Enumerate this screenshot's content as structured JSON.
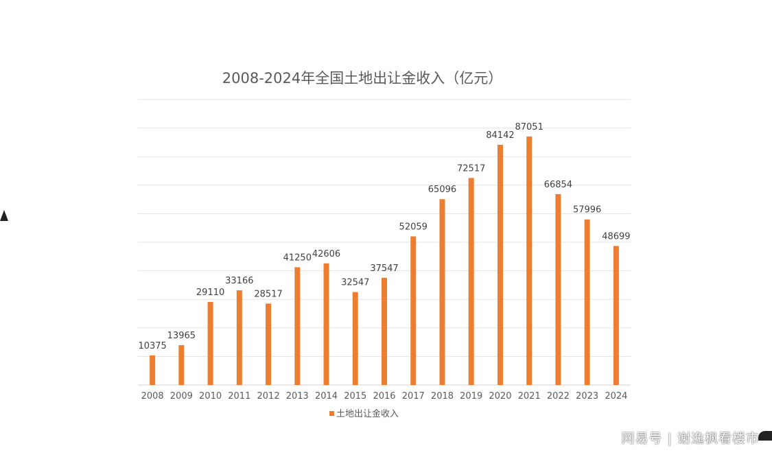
{
  "chart_data": {
    "type": "bar",
    "title": "2008-2024年全国土地出让金收入（亿元）",
    "categories": [
      "2008",
      "2009",
      "2010",
      "2011",
      "2012",
      "2013",
      "2014",
      "2015",
      "2016",
      "2017",
      "2018",
      "2019",
      "2020",
      "2021",
      "2022",
      "2023",
      "2024"
    ],
    "series": [
      {
        "name": "土地出让金收入",
        "values": [
          10375,
          13965,
          29110,
          33166,
          28517,
          41250,
          42606,
          32547,
          37547,
          52059,
          65096,
          72517,
          84142,
          87051,
          66854,
          57996,
          48699
        ]
      }
    ],
    "ylim": [
      0,
      100000
    ],
    "grid": true,
    "legend": "bottom",
    "bar_color": "#ED7D31"
  },
  "watermark": "网易号 | 谢逸枫看楼市"
}
